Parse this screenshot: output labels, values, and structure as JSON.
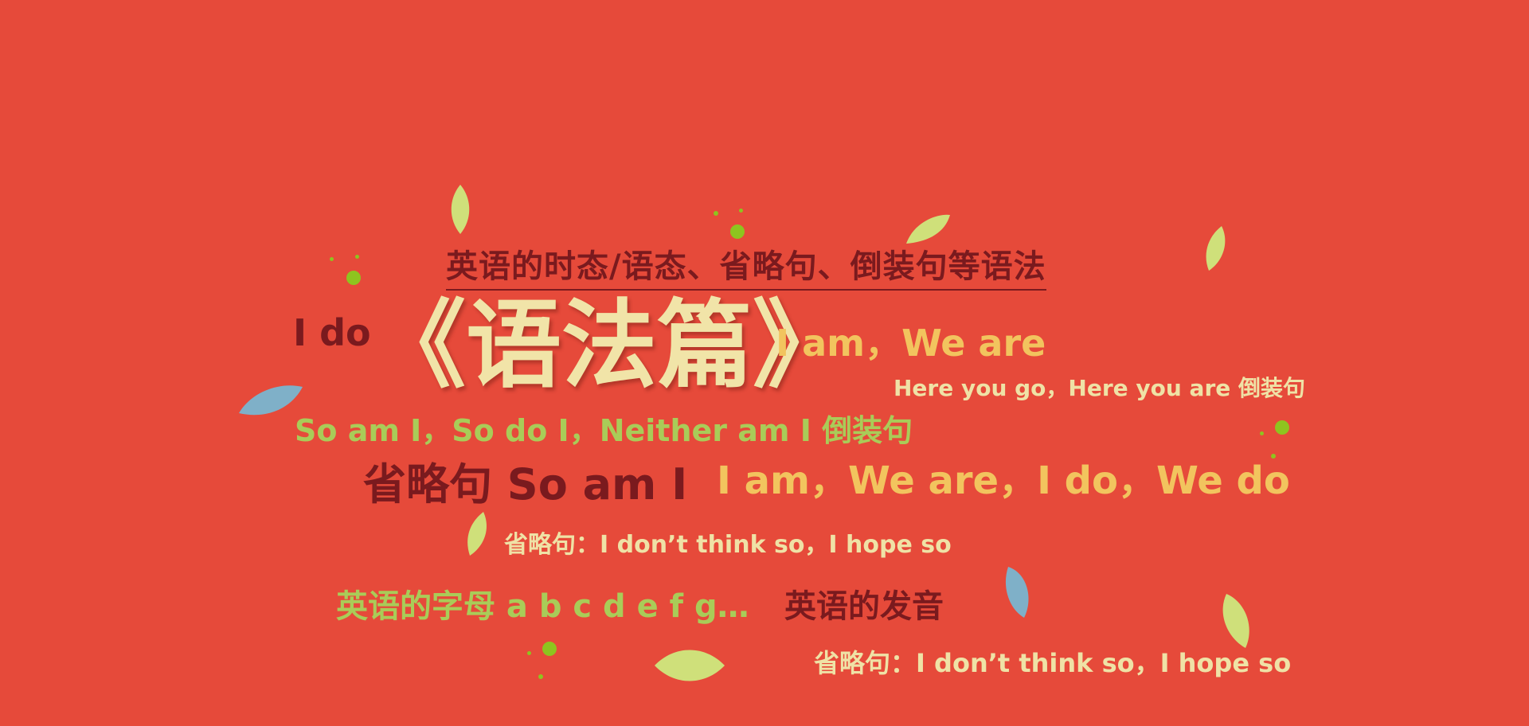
{
  "headline": "英语的时态/语态、省略句、倒装句等语法",
  "title": "《语法篇》",
  "phrases": {
    "i_do": "I do",
    "i_am_we_are": "I am，We are",
    "here_you_go": "Here you go，Here you are  倒装句",
    "so_am_i_line": "So am I，So do I，Neither am I  倒装句",
    "omission_so_am_i": "省略句 So am I",
    "i_am_we_are_i_do_we_do": "I am，We are，I do，We do",
    "omission_think_hope_1": "省略句：I don’t think so，I hope so",
    "letters": "英语的字母 a b c d e f g…",
    "pronunciation": "英语的发音",
    "omission_think_hope_2": "省略句：I don’t think so，I hope so"
  },
  "colors": {
    "background": "#e64a3a",
    "dark_red": "#7a1a1e",
    "cream": "#efe2a6",
    "yellow": "#f2c45e",
    "green": "#a9cc58",
    "leaf_green": "#cfe07a",
    "leaf_blue": "#7fb0c8",
    "dot_green": "#8ec41f"
  },
  "decorations": [
    "leaf-icon",
    "dot-icon"
  ]
}
